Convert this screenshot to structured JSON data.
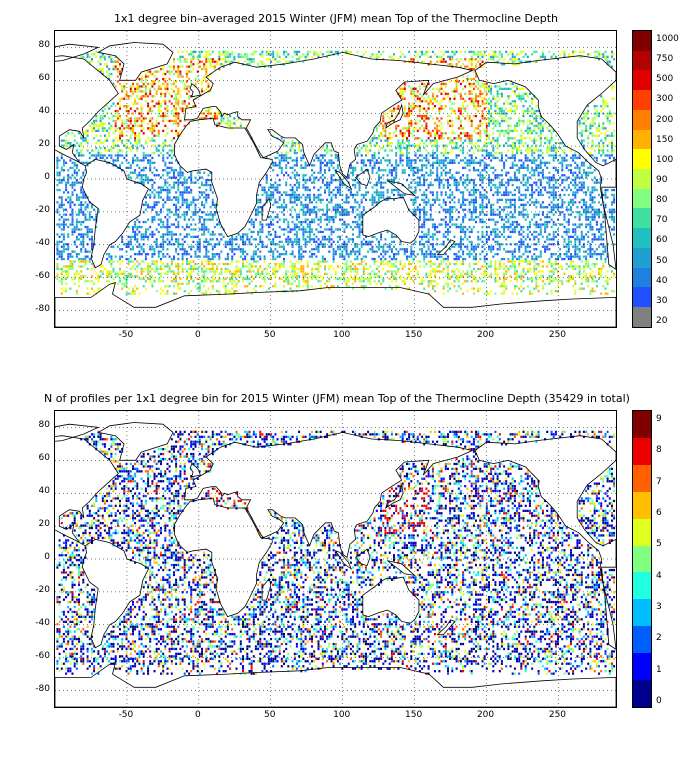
{
  "panels": [
    {
      "title": "1x1 degree bin–averaged 2015 Winter (JFM) mean Top of the Thermocline Depth",
      "colorbar": {
        "ticks": [
          "1000",
          "750",
          "500",
          "300",
          "200",
          "150",
          "100",
          "90",
          "80",
          "70",
          "60",
          "50",
          "40",
          "30",
          "20"
        ],
        "colors": [
          "#800000",
          "#b30000",
          "#e00000",
          "#ff4000",
          "#ff8000",
          "#ffb000",
          "#ffff00",
          "#c0ff40",
          "#80ff80",
          "#40e0a0",
          "#20c0c0",
          "#20a0d0",
          "#2080e0",
          "#2050ff",
          "#808080"
        ]
      }
    },
    {
      "title": "N of profiles per 1x1 degree bin for 2015 Winter (JFM) mean Top of the Thermocline Depth  (35429 in total)",
      "colorbar": {
        "ticks": [
          "9",
          "8",
          "7",
          "6",
          "5",
          "4",
          "3",
          "2",
          "1",
          "0"
        ]
      }
    }
  ],
  "axes": {
    "y_ticks": [
      "80",
      "60",
      "40",
      "20",
      "0",
      "-20",
      "-40",
      "-60",
      "-80"
    ],
    "y_values": [
      80,
      60,
      40,
      20,
      0,
      -20,
      -40,
      -60,
      -80
    ],
    "x_ticks": [
      "-50",
      "0",
      "50",
      "100",
      "150",
      "200",
      "250"
    ],
    "x_values": [
      -50,
      0,
      50,
      100,
      150,
      200,
      250
    ],
    "xlim": [
      -100,
      290
    ],
    "ylim": [
      -90,
      90
    ],
    "grid": "dotted"
  }
}
